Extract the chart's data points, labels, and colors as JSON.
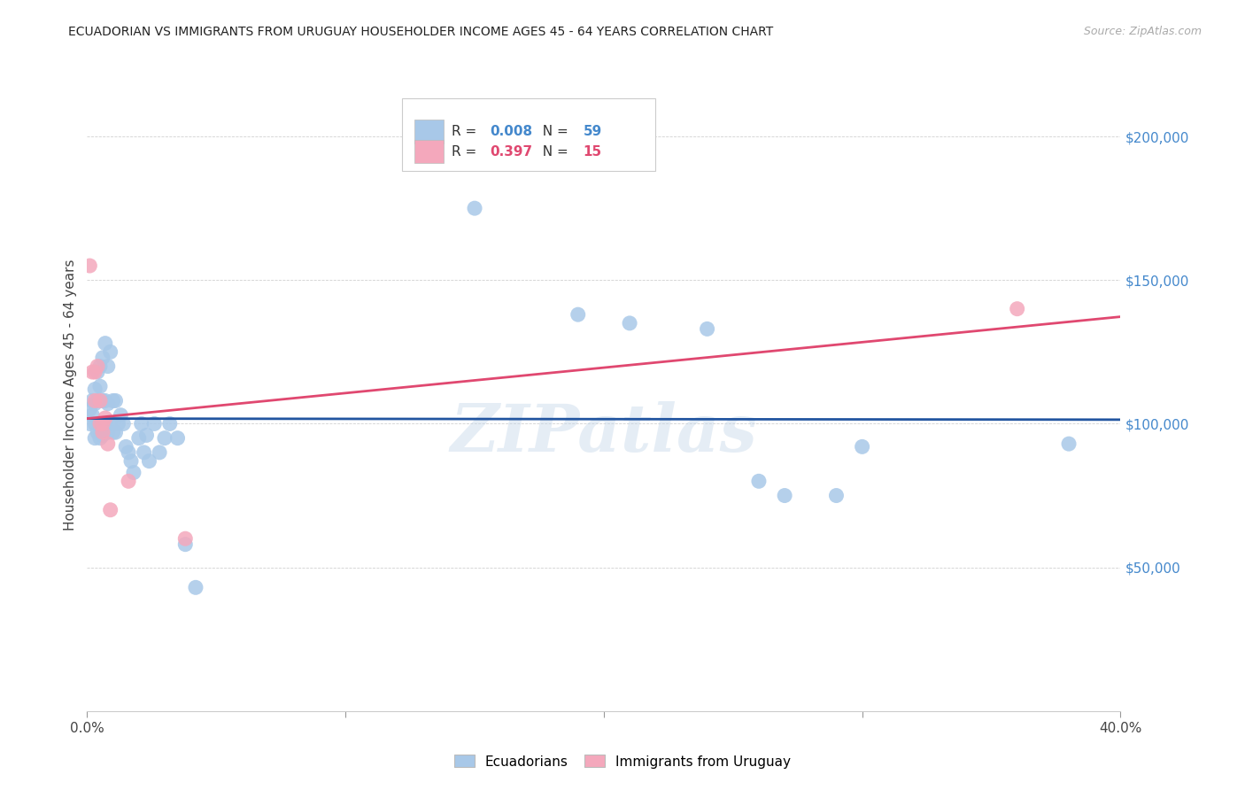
{
  "title": "ECUADORIAN VS IMMIGRANTS FROM URUGUAY HOUSEHOLDER INCOME AGES 45 - 64 YEARS CORRELATION CHART",
  "source": "Source: ZipAtlas.com",
  "ylabel": "Householder Income Ages 45 - 64 years",
  "xlim": [
    0.0,
    0.4
  ],
  "ylim": [
    0,
    220000
  ],
  "yticks": [
    50000,
    100000,
    150000,
    200000
  ],
  "ytick_labels": [
    "$50,000",
    "$100,000",
    "$150,000",
    "$200,000"
  ],
  "xticks": [
    0.0,
    0.1,
    0.2,
    0.3,
    0.4
  ],
  "xtick_labels": [
    "0.0%",
    "",
    "",
    "",
    "40.0%"
  ],
  "legend_labels": [
    "Ecuadorians",
    "Immigrants from Uruguay"
  ],
  "r_ecuadorian": 0.008,
  "n_ecuadorian": 59,
  "r_uruguay": 0.397,
  "n_uruguay": 15,
  "blue_scatter_color": "#a8c8e8",
  "pink_scatter_color": "#f4a8bc",
  "blue_line_color": "#2255a0",
  "pink_line_color": "#e04870",
  "ytick_color": "#4488cc",
  "watermark": "ZIPatlas",
  "background_color": "#ffffff",
  "ecuadorian_x": [
    0.001,
    0.001,
    0.002,
    0.002,
    0.003,
    0.003,
    0.003,
    0.003,
    0.004,
    0.004,
    0.004,
    0.005,
    0.005,
    0.005,
    0.005,
    0.006,
    0.006,
    0.006,
    0.006,
    0.007,
    0.007,
    0.007,
    0.008,
    0.008,
    0.008,
    0.009,
    0.009,
    0.01,
    0.01,
    0.011,
    0.011,
    0.012,
    0.013,
    0.014,
    0.015,
    0.016,
    0.017,
    0.018,
    0.02,
    0.021,
    0.022,
    0.023,
    0.024,
    0.026,
    0.028,
    0.03,
    0.032,
    0.035,
    0.038,
    0.042,
    0.15,
    0.19,
    0.21,
    0.24,
    0.26,
    0.27,
    0.29,
    0.3,
    0.38
  ],
  "ecuadorian_y": [
    100000,
    105000,
    108000,
    103000,
    112000,
    107000,
    95000,
    100000,
    118000,
    108000,
    97000,
    120000,
    113000,
    100000,
    95000,
    123000,
    108000,
    100000,
    96000,
    128000,
    108000,
    100000,
    120000,
    107000,
    97000,
    125000,
    100000,
    108000,
    97000,
    108000,
    97000,
    100000,
    103000,
    100000,
    92000,
    90000,
    87000,
    83000,
    95000,
    100000,
    90000,
    96000,
    87000,
    100000,
    90000,
    95000,
    100000,
    95000,
    58000,
    43000,
    175000,
    138000,
    135000,
    133000,
    80000,
    75000,
    75000,
    92000,
    93000
  ],
  "uruguay_x": [
    0.001,
    0.002,
    0.003,
    0.003,
    0.004,
    0.005,
    0.005,
    0.006,
    0.006,
    0.007,
    0.008,
    0.009,
    0.016,
    0.038,
    0.36
  ],
  "uruguay_y": [
    155000,
    118000,
    118000,
    108000,
    120000,
    108000,
    100000,
    100000,
    97000,
    102000,
    93000,
    70000,
    80000,
    60000,
    140000
  ]
}
